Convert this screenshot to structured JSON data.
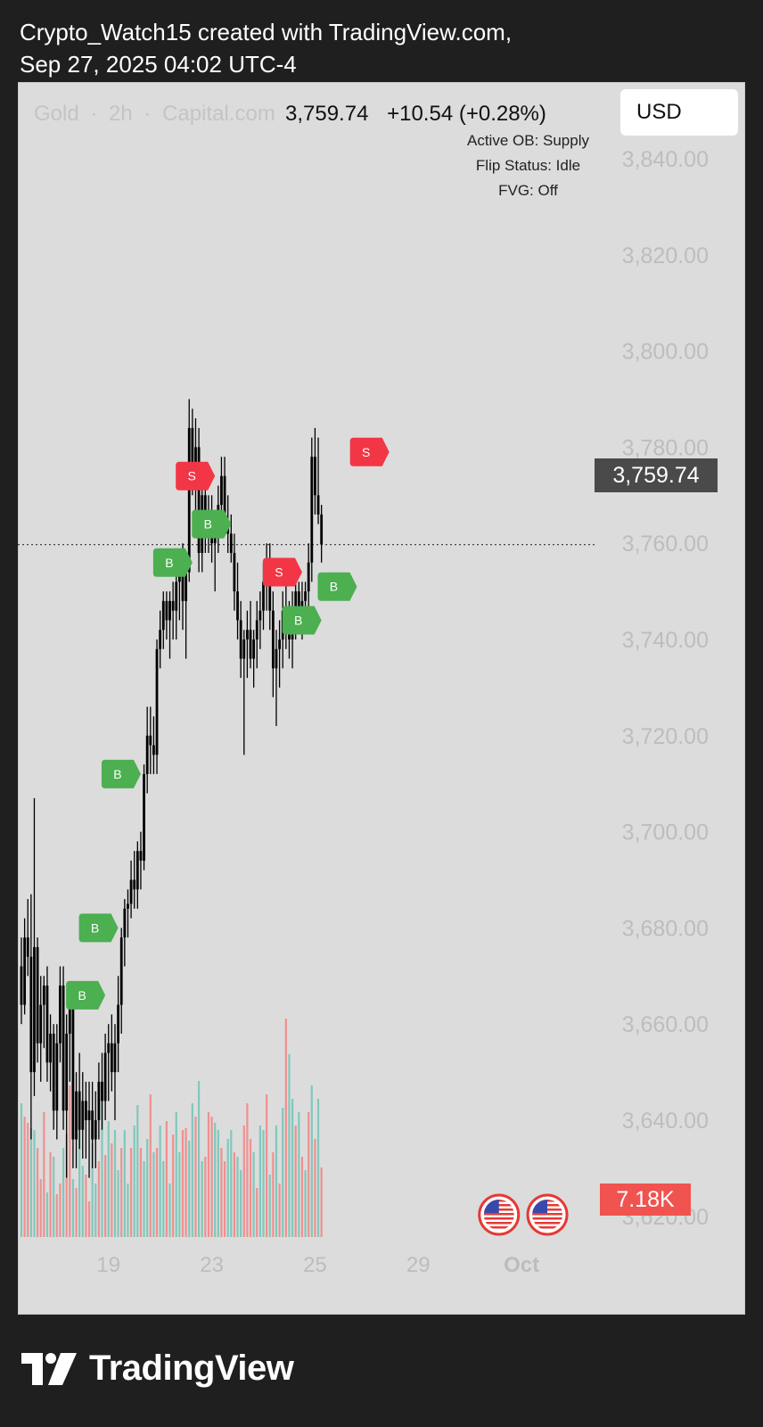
{
  "header": {
    "line1": "Crypto_Watch15 created with TradingView.com,",
    "line2": "Sep 27, 2025 04:02 UTC-4"
  },
  "symbol": {
    "name": "Gold",
    "interval": "2h",
    "source": "Capital.com",
    "separator": "·",
    "last": "3,759.74",
    "change": "+10.54 (+0.28%)"
  },
  "indicator": {
    "active_ob": "Active OB: Supply",
    "flip_status": "Flip Status: Idle",
    "fvg": "FVG: Off"
  },
  "currency_button": "USD",
  "last_price_label": "3,759.74",
  "volume_label": "7.18K",
  "brand": "TradingView",
  "colors": {
    "background": "#dcdcdc",
    "candle": "#000000",
    "buy_marker": "#4caf50",
    "sell_marker": "#f23645",
    "volume_up": "#80c8bc",
    "volume_down": "#f09090",
    "price_tag": "#4a4a4a",
    "volume_tag": "#f05350"
  },
  "chart_data": {
    "type": "candlestick",
    "y_axis": {
      "ticks": [
        "3,840.00",
        "3,820.00",
        "3,800.00",
        "3,780.00",
        "3,760.00",
        "3,740.00",
        "3,720.00",
        "3,700.00",
        "3,680.00",
        "3,660.00",
        "3,640.00",
        "3,620.00"
      ],
      "tick_values": [
        3840,
        3820,
        3800,
        3780,
        3760,
        3740,
        3720,
        3700,
        3680,
        3660,
        3640,
        3620
      ]
    },
    "x_axis": {
      "ticks": [
        "19",
        "23",
        "25",
        "29",
        "Oct"
      ],
      "tick_bar_index": [
        27,
        59,
        91,
        123,
        155
      ]
    },
    "last_price": 3759.74,
    "candles": [
      [
        3672,
        3678,
        3660,
        3664
      ],
      [
        3664,
        3682,
        3662,
        3678
      ],
      [
        3678,
        3686,
        3670,
        3674
      ],
      [
        3674,
        3687,
        3636,
        3650
      ],
      [
        3650,
        3707,
        3645,
        3676
      ],
      [
        3676,
        3678,
        3652,
        3656
      ],
      [
        3656,
        3670,
        3648,
        3664
      ],
      [
        3664,
        3670,
        3655,
        3668
      ],
      [
        3668,
        3672,
        3648,
        3652
      ],
      [
        3652,
        3662,
        3646,
        3658
      ],
      [
        3658,
        3660,
        3638,
        3642
      ],
      [
        3642,
        3660,
        3636,
        3656
      ],
      [
        3656,
        3672,
        3652,
        3668
      ],
      [
        3668,
        3672,
        3638,
        3642
      ],
      [
        3642,
        3662,
        3628,
        3658
      ],
      [
        3658,
        3668,
        3648,
        3664
      ],
      [
        3664,
        3666,
        3630,
        3636
      ],
      [
        3636,
        3650,
        3630,
        3646
      ],
      [
        3646,
        3654,
        3634,
        3638
      ],
      [
        3638,
        3650,
        3632,
        3644
      ],
      [
        3644,
        3648,
        3632,
        3640
      ],
      [
        3640,
        3648,
        3628,
        3642
      ],
      [
        3642,
        3648,
        3630,
        3636
      ],
      [
        3636,
        3646,
        3630,
        3640
      ],
      [
        3640,
        3652,
        3636,
        3648
      ],
      [
        3648,
        3654,
        3638,
        3644
      ],
      [
        3644,
        3658,
        3640,
        3654
      ],
      [
        3654,
        3660,
        3644,
        3656
      ],
      [
        3656,
        3662,
        3646,
        3650
      ],
      [
        3650,
        3660,
        3640,
        3656
      ],
      [
        3656,
        3670,
        3650,
        3664
      ],
      [
        3664,
        3680,
        3658,
        3678
      ],
      [
        3678,
        3686,
        3672,
        3684
      ],
      [
        3684,
        3688,
        3678,
        3685
      ],
      [
        3685,
        3694,
        3682,
        3690
      ],
      [
        3690,
        3696,
        3684,
        3688
      ],
      [
        3688,
        3698,
        3684,
        3696
      ],
      [
        3696,
        3700,
        3688,
        3694
      ],
      [
        3694,
        3714,
        3692,
        3712
      ],
      [
        3712,
        3726,
        3708,
        3720
      ],
      [
        3720,
        3726,
        3712,
        3718
      ],
      [
        3718,
        3724,
        3712,
        3716
      ],
      [
        3716,
        3740,
        3712,
        3738
      ],
      [
        3738,
        3746,
        3734,
        3742
      ],
      [
        3742,
        3750,
        3738,
        3748
      ],
      [
        3748,
        3750,
        3740,
        3744
      ],
      [
        3744,
        3750,
        3736,
        3748
      ],
      [
        3748,
        3752,
        3740,
        3746
      ],
      [
        3746,
        3754,
        3740,
        3752
      ],
      [
        3752,
        3758,
        3744,
        3756
      ],
      [
        3756,
        3760,
        3742,
        3748
      ],
      [
        3748,
        3758,
        3736,
        3754
      ],
      [
        3754,
        3790,
        3752,
        3784
      ],
      [
        3784,
        3788,
        3770,
        3774
      ],
      [
        3774,
        3786,
        3762,
        3780
      ],
      [
        3780,
        3784,
        3754,
        3758
      ],
      [
        3758,
        3774,
        3754,
        3770
      ],
      [
        3770,
        3776,
        3758,
        3764
      ],
      [
        3764,
        3770,
        3758,
        3766
      ],
      [
        3766,
        3770,
        3756,
        3760
      ],
      [
        3760,
        3766,
        3750,
        3762
      ],
      [
        3762,
        3772,
        3758,
        3768
      ],
      [
        3768,
        3778,
        3762,
        3774
      ],
      [
        3774,
        3778,
        3762,
        3764
      ],
      [
        3764,
        3770,
        3758,
        3762
      ],
      [
        3762,
        3766,
        3756,
        3758
      ],
      [
        3758,
        3762,
        3746,
        3750
      ],
      [
        3750,
        3756,
        3740,
        3744
      ],
      [
        3744,
        3748,
        3732,
        3736
      ],
      [
        3736,
        3742,
        3716,
        3740
      ],
      [
        3740,
        3746,
        3732,
        3742
      ],
      [
        3742,
        3748,
        3734,
        3736
      ],
      [
        3736,
        3742,
        3730,
        3740
      ],
      [
        3740,
        3748,
        3734,
        3744
      ],
      [
        3744,
        3750,
        3738,
        3746
      ],
      [
        3746,
        3756,
        3742,
        3752
      ],
      [
        3752,
        3760,
        3746,
        3754
      ],
      [
        3754,
        3760,
        3742,
        3746
      ],
      [
        3746,
        3750,
        3728,
        3734
      ],
      [
        3734,
        3742,
        3722,
        3738
      ],
      [
        3738,
        3744,
        3730,
        3740
      ],
      [
        3740,
        3750,
        3734,
        3746
      ],
      [
        3746,
        3752,
        3738,
        3742
      ],
      [
        3742,
        3748,
        3736,
        3740
      ],
      [
        3740,
        3750,
        3734,
        3746
      ],
      [
        3746,
        3752,
        3740,
        3750
      ],
      [
        3750,
        3752,
        3742,
        3746
      ],
      [
        3746,
        3752,
        3740,
        3748
      ],
      [
        3748,
        3752,
        3742,
        3750
      ],
      [
        3750,
        3760,
        3746,
        3756
      ],
      [
        3756,
        3782,
        3752,
        3778
      ],
      [
        3778,
        3784,
        3766,
        3770
      ],
      [
        3770,
        3782,
        3764,
        3766
      ],
      [
        3766,
        3768,
        3756,
        3759.74
      ]
    ],
    "volume": [
      [
        150,
        1
      ],
      [
        135,
        0
      ],
      [
        128,
        0
      ],
      [
        122,
        1
      ],
      [
        120,
        1
      ],
      [
        100,
        0
      ],
      [
        65,
        0
      ],
      [
        140,
        0
      ],
      [
        50,
        1
      ],
      [
        95,
        0
      ],
      [
        90,
        1
      ],
      [
        48,
        0
      ],
      [
        60,
        0
      ],
      [
        100,
        1
      ],
      [
        115,
        0
      ],
      [
        170,
        0
      ],
      [
        65,
        1
      ],
      [
        55,
        0
      ],
      [
        135,
        1
      ],
      [
        80,
        1
      ],
      [
        70,
        0
      ],
      [
        40,
        0
      ],
      [
        105,
        1
      ],
      [
        60,
        1
      ],
      [
        85,
        0
      ],
      [
        170,
        1
      ],
      [
        92,
        0
      ],
      [
        130,
        1
      ],
      [
        105,
        0
      ],
      [
        120,
        1
      ],
      [
        75,
        1
      ],
      [
        100,
        0
      ],
      [
        120,
        1
      ],
      [
        60,
        1
      ],
      [
        100,
        0
      ],
      [
        125,
        1
      ],
      [
        148,
        1
      ],
      [
        100,
        0
      ],
      [
        85,
        1
      ],
      [
        110,
        1
      ],
      [
        160,
        0
      ],
      [
        95,
        1
      ],
      [
        100,
        0
      ],
      [
        125,
        1
      ],
      [
        85,
        1
      ],
      [
        130,
        0
      ],
      [
        60,
        1
      ],
      [
        115,
        0
      ],
      [
        140,
        1
      ],
      [
        95,
        1
      ],
      [
        120,
        0
      ],
      [
        122,
        0
      ],
      [
        108,
        1
      ],
      [
        150,
        1
      ],
      [
        135,
        0
      ],
      [
        175,
        1
      ],
      [
        85,
        1
      ],
      [
        90,
        0
      ],
      [
        140,
        0
      ],
      [
        135,
        0
      ],
      [
        128,
        1
      ],
      [
        120,
        1
      ],
      [
        100,
        0
      ],
      [
        85,
        0
      ],
      [
        110,
        1
      ],
      [
        120,
        1
      ],
      [
        95,
        0
      ],
      [
        90,
        1
      ],
      [
        75,
        1
      ],
      [
        125,
        0
      ],
      [
        150,
        0
      ],
      [
        110,
        0
      ],
      [
        95,
        1
      ],
      [
        55,
        0
      ],
      [
        125,
        1
      ],
      [
        120,
        1
      ],
      [
        160,
        0
      ],
      [
        70,
        1
      ],
      [
        95,
        0
      ],
      [
        125,
        1
      ],
      [
        60,
        0
      ],
      [
        145,
        1
      ],
      [
        245,
        0
      ],
      [
        205,
        1
      ],
      [
        155,
        1
      ],
      [
        125,
        0
      ],
      [
        140,
        1
      ],
      [
        90,
        0
      ],
      [
        75,
        1
      ],
      [
        140,
        0
      ],
      [
        170,
        1
      ],
      [
        110,
        0
      ],
      [
        155,
        1
      ],
      [
        78,
        0
      ]
    ],
    "markers": [
      {
        "type": "B",
        "bar": 26,
        "price": 3666
      },
      {
        "type": "B",
        "bar": 30,
        "price": 3680
      },
      {
        "type": "B",
        "bar": 37,
        "price": 3712
      },
      {
        "type": "B",
        "bar": 53,
        "price": 3756
      },
      {
        "type": "S",
        "bar": 60,
        "price": 3774
      },
      {
        "type": "B",
        "bar": 65,
        "price": 3764
      },
      {
        "type": "S",
        "bar": 87,
        "price": 3754
      },
      {
        "type": "B",
        "bar": 93,
        "price": 3744
      },
      {
        "type": "B",
        "bar": 104,
        "price": 3751
      },
      {
        "type": "S",
        "bar": 114,
        "price": 3779
      }
    ],
    "events": [
      {
        "type": "flag-us",
        "bar": 148
      },
      {
        "type": "flag-us",
        "bar": 163
      }
    ]
  }
}
